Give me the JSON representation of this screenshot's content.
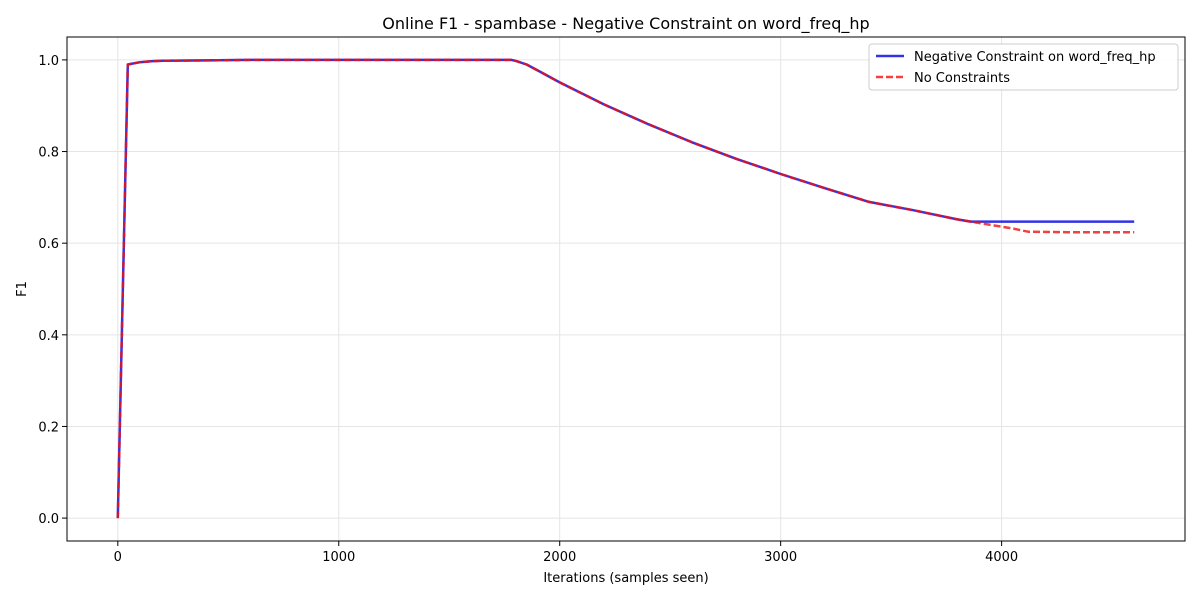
{
  "chart_data": {
    "type": "line",
    "title": "Online F1 - spambase - Negative Constraint on word_freq_hp",
    "xlabel": "Iterations (samples seen)",
    "ylabel": "F1",
    "xlim": [
      -230,
      4830
    ],
    "ylim": [
      -0.05,
      1.05
    ],
    "xticks": [
      0,
      1000,
      2000,
      3000,
      4000
    ],
    "yticks": [
      0.0,
      0.2,
      0.4,
      0.6,
      0.8,
      1.0
    ],
    "xtick_labels": [
      "0",
      "1000",
      "2000",
      "3000",
      "4000"
    ],
    "ytick_labels": [
      "0.0",
      "0.2",
      "0.4",
      "0.6",
      "0.8",
      "1.0"
    ],
    "grid": true,
    "legend_position": "top-right",
    "series": [
      {
        "name": "Negative Constraint on word_freq_hp",
        "color": "#0000dd",
        "style": "solid",
        "x": [
          0,
          45,
          100,
          150,
          200,
          400,
          600,
          1000,
          1500,
          1780,
          1800,
          1850,
          1900,
          2000,
          2200,
          2400,
          2600,
          2800,
          3000,
          3200,
          3400,
          3600,
          3800,
          3860,
          4000,
          4200,
          4400,
          4600
        ],
        "y": [
          0.0,
          0.99,
          0.995,
          0.997,
          0.998,
          0.999,
          1.0,
          1.0,
          1.0,
          1.0,
          0.998,
          0.99,
          0.977,
          0.951,
          0.903,
          0.86,
          0.82,
          0.784,
          0.751,
          0.72,
          0.69,
          0.672,
          0.652,
          0.647,
          0.647,
          0.647,
          0.647,
          0.647
        ]
      },
      {
        "name": "No Constraints",
        "color": "#ee1111",
        "style": "dashed",
        "x": [
          0,
          45,
          100,
          150,
          200,
          400,
          600,
          1000,
          1500,
          1780,
          1800,
          1850,
          1900,
          2000,
          2200,
          2400,
          2600,
          2800,
          3000,
          3200,
          3400,
          3600,
          3800,
          3860,
          3950,
          4050,
          4120,
          4300,
          4600
        ],
        "y": [
          0.0,
          0.99,
          0.995,
          0.997,
          0.998,
          0.999,
          1.0,
          1.0,
          1.0,
          1.0,
          0.998,
          0.99,
          0.977,
          0.951,
          0.903,
          0.86,
          0.82,
          0.784,
          0.751,
          0.72,
          0.69,
          0.672,
          0.652,
          0.647,
          0.64,
          0.632,
          0.625,
          0.624,
          0.624
        ]
      }
    ]
  }
}
